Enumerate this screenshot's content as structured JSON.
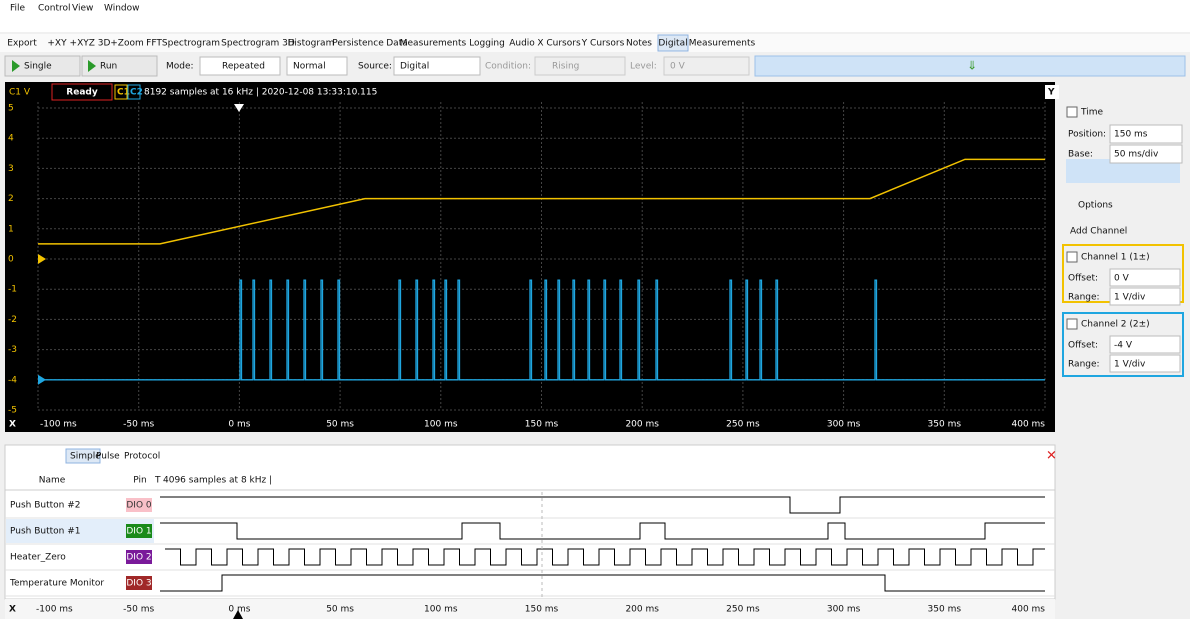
{
  "menu": [
    "File",
    "Control",
    "View",
    "Window"
  ],
  "tabs": [
    "Export",
    "+XY",
    "+XYZ 3D",
    "+Zoom",
    "FFT",
    "Spectrogram",
    "Spectrogram 3D",
    "Histogram",
    "Persistence",
    "Data",
    "Measurements",
    "Logging",
    "Audio",
    "X Cursors",
    "Y Cursors",
    "Notes",
    "Digital",
    "Measurements"
  ],
  "toolbar": {
    "single": "Single",
    "run": "Run",
    "mode_label": "Mode:",
    "mode": "Repeated",
    "trigger": "Normal",
    "source_label": "Source:",
    "source": "Digital",
    "condition_label": "Condition:",
    "condition": "Rising",
    "level_label": "Level:",
    "level": "0 V"
  },
  "scope": {
    "y_unit": "C1 V",
    "status": "Ready",
    "c1": "C1",
    "c2": "C2",
    "info": "8192 samples at 16 kHz | 2020-12-08 13:33:10.115",
    "y_axis": "Y",
    "x_axis": "X",
    "y_labels": [
      "5",
      "4",
      "3",
      "2",
      "1",
      "0",
      "-1",
      "-2",
      "-3",
      "-4",
      "-5"
    ],
    "x_labels": [
      "-100 ms",
      "-50 ms",
      "0 ms",
      "50 ms",
      "100 ms",
      "150 ms",
      "200 ms",
      "250 ms",
      "300 ms",
      "350 ms",
      "400 ms"
    ]
  },
  "time": {
    "title": "Time",
    "position_label": "Position:",
    "position": "150 ms",
    "base_label": "Base:",
    "base": "50 ms/div"
  },
  "options": "Options",
  "add_channel": "Add Channel",
  "channels": [
    {
      "title": "Channel 1 (1±)",
      "offset_label": "Offset:",
      "offset": "0 V",
      "range_label": "Range:",
      "range": "1 V/div"
    },
    {
      "title": "Channel 2 (2±)",
      "offset_label": "Offset:",
      "offset": "-4 V",
      "range_label": "Range:",
      "range": "1 V/div"
    }
  ],
  "logic": {
    "tools": [
      "Simple",
      "Pulse",
      "Protocol"
    ],
    "columns": [
      "Name",
      "Pin",
      "T"
    ],
    "info": "4096 samples at 8 kHz |",
    "rows": [
      {
        "name": "Push Button #2",
        "pin": "DIO 0"
      },
      {
        "name": "Push Button #1",
        "pin": "DIO 1"
      },
      {
        "name": "Heater_Zero",
        "pin": "DIO 2"
      },
      {
        "name": "Temperature Monitor",
        "pin": "DIO 3"
      }
    ],
    "x_axis": "X"
  }
}
